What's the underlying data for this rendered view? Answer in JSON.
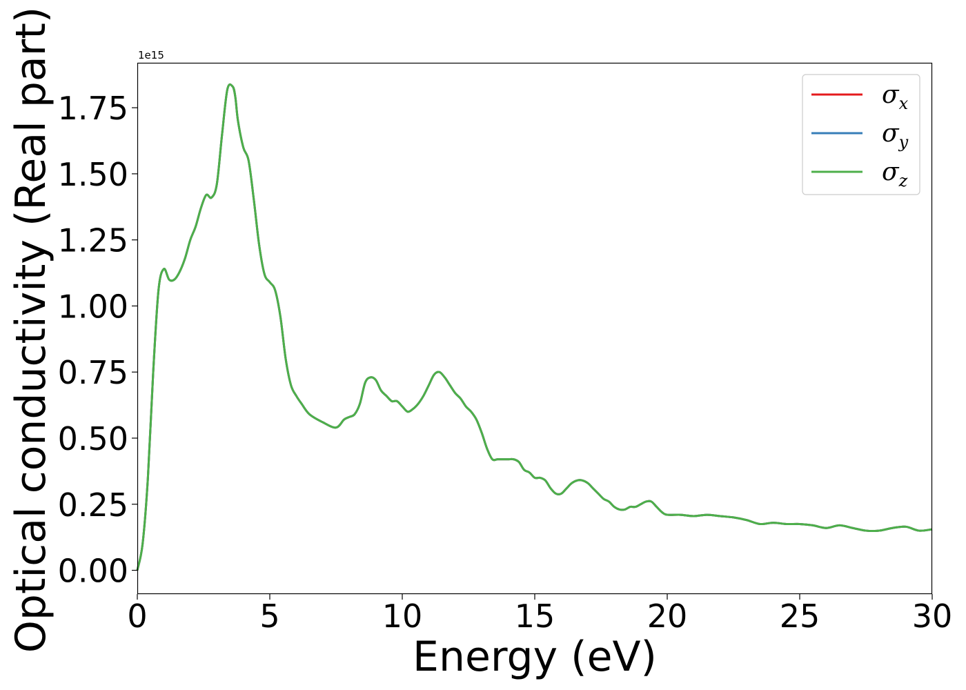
{
  "chart_data": {
    "type": "line",
    "xlabel": "Energy (eV)",
    "ylabel": "Optical conductivity (Real part)",
    "y_offset_label": "1e15",
    "y_scale": 1000000000000000.0,
    "xlim": [
      0,
      30
    ],
    "ylim": [
      -0.09,
      1.92
    ],
    "xticks": [
      0,
      5,
      10,
      15,
      20,
      25,
      30
    ],
    "xtick_labels": [
      "0",
      "5",
      "10",
      "15",
      "20",
      "25",
      "30"
    ],
    "yticks": [
      0,
      0.25,
      0.5,
      0.75,
      1.0,
      1.25,
      1.5,
      1.75
    ],
    "ytick_labels": [
      "0.00",
      "0.25",
      "0.50",
      "0.75",
      "1.00",
      "1.25",
      "1.50",
      "1.75"
    ],
    "grid": false,
    "legend_position": "top-right",
    "x": [
      0,
      0.2,
      0.4,
      0.6,
      0.8,
      1.0,
      1.2,
      1.4,
      1.6,
      1.8,
      2.0,
      2.2,
      2.4,
      2.6,
      2.8,
      3.0,
      3.2,
      3.4,
      3.6,
      3.7,
      3.8,
      4.0,
      4.2,
      4.4,
      4.6,
      4.8,
      5.0,
      5.2,
      5.4,
      5.6,
      5.8,
      6.0,
      6.2,
      6.5,
      7.0,
      7.5,
      7.8,
      8.0,
      8.2,
      8.4,
      8.6,
      8.8,
      9.0,
      9.2,
      9.4,
      9.6,
      9.8,
      10.0,
      10.2,
      10.4,
      10.6,
      10.8,
      11.0,
      11.2,
      11.4,
      11.6,
      11.8,
      12.0,
      12.2,
      12.4,
      12.6,
      12.8,
      13.0,
      13.2,
      13.4,
      13.6,
      13.8,
      14.0,
      14.2,
      14.4,
      14.6,
      14.8,
      15.0,
      15.2,
      15.4,
      15.6,
      15.8,
      16.0,
      16.2,
      16.4,
      16.6,
      16.8,
      17.0,
      17.2,
      17.4,
      17.6,
      17.8,
      18.0,
      18.2,
      18.4,
      18.6,
      18.8,
      19.0,
      19.2,
      19.4,
      19.6,
      19.8,
      20.0,
      20.5,
      21.0,
      21.5,
      22.0,
      22.5,
      23.0,
      23.5,
      24.0,
      24.5,
      25.0,
      25.5,
      26.0,
      26.5,
      27.0,
      27.5,
      28.0,
      28.5,
      29.0,
      29.5,
      30.0
    ],
    "series": [
      {
        "name": "σ_x",
        "color": "#e41a1c",
        "values": [
          0.0,
          0.1,
          0.35,
          0.75,
          1.06,
          1.14,
          1.1,
          1.1,
          1.13,
          1.18,
          1.25,
          1.3,
          1.37,
          1.42,
          1.41,
          1.46,
          1.65,
          1.82,
          1.83,
          1.79,
          1.7,
          1.6,
          1.55,
          1.4,
          1.23,
          1.12,
          1.09,
          1.06,
          0.96,
          0.8,
          0.7,
          0.66,
          0.63,
          0.59,
          0.56,
          0.54,
          0.57,
          0.58,
          0.59,
          0.63,
          0.71,
          0.73,
          0.72,
          0.68,
          0.66,
          0.64,
          0.64,
          0.62,
          0.6,
          0.61,
          0.63,
          0.66,
          0.7,
          0.74,
          0.75,
          0.73,
          0.7,
          0.67,
          0.65,
          0.62,
          0.6,
          0.57,
          0.52,
          0.46,
          0.42,
          0.42,
          0.42,
          0.42,
          0.42,
          0.41,
          0.38,
          0.37,
          0.35,
          0.35,
          0.34,
          0.31,
          0.29,
          0.29,
          0.31,
          0.33,
          0.34,
          0.34,
          0.33,
          0.31,
          0.29,
          0.27,
          0.26,
          0.24,
          0.23,
          0.23,
          0.24,
          0.24,
          0.25,
          0.26,
          0.26,
          0.24,
          0.22,
          0.21,
          0.21,
          0.205,
          0.21,
          0.205,
          0.2,
          0.19,
          0.175,
          0.18,
          0.175,
          0.175,
          0.17,
          0.16,
          0.17,
          0.16,
          0.15,
          0.15,
          0.16,
          0.165,
          0.15,
          0.155
        ]
      },
      {
        "name": "σ_y",
        "color": "#377eb8",
        "values": [
          0.0,
          0.1,
          0.35,
          0.75,
          1.06,
          1.14,
          1.1,
          1.1,
          1.13,
          1.18,
          1.25,
          1.3,
          1.37,
          1.42,
          1.41,
          1.46,
          1.65,
          1.82,
          1.83,
          1.79,
          1.7,
          1.6,
          1.55,
          1.4,
          1.23,
          1.12,
          1.09,
          1.06,
          0.96,
          0.8,
          0.7,
          0.66,
          0.63,
          0.59,
          0.56,
          0.54,
          0.57,
          0.58,
          0.59,
          0.63,
          0.71,
          0.73,
          0.72,
          0.68,
          0.66,
          0.64,
          0.64,
          0.62,
          0.6,
          0.61,
          0.63,
          0.66,
          0.7,
          0.74,
          0.75,
          0.73,
          0.7,
          0.67,
          0.65,
          0.62,
          0.6,
          0.57,
          0.52,
          0.46,
          0.42,
          0.42,
          0.42,
          0.42,
          0.42,
          0.41,
          0.38,
          0.37,
          0.35,
          0.35,
          0.34,
          0.31,
          0.29,
          0.29,
          0.31,
          0.33,
          0.34,
          0.34,
          0.33,
          0.31,
          0.29,
          0.27,
          0.26,
          0.24,
          0.23,
          0.23,
          0.24,
          0.24,
          0.25,
          0.26,
          0.26,
          0.24,
          0.22,
          0.21,
          0.21,
          0.205,
          0.21,
          0.205,
          0.2,
          0.19,
          0.175,
          0.18,
          0.175,
          0.175,
          0.17,
          0.16,
          0.17,
          0.16,
          0.15,
          0.15,
          0.16,
          0.165,
          0.15,
          0.155
        ]
      },
      {
        "name": "σ_z",
        "color": "#4daf4a",
        "values": [
          0.0,
          0.1,
          0.35,
          0.75,
          1.06,
          1.14,
          1.1,
          1.1,
          1.13,
          1.18,
          1.25,
          1.3,
          1.37,
          1.42,
          1.41,
          1.46,
          1.65,
          1.82,
          1.83,
          1.79,
          1.7,
          1.6,
          1.55,
          1.4,
          1.23,
          1.12,
          1.09,
          1.06,
          0.96,
          0.8,
          0.7,
          0.66,
          0.63,
          0.59,
          0.56,
          0.54,
          0.57,
          0.58,
          0.59,
          0.63,
          0.71,
          0.73,
          0.72,
          0.68,
          0.66,
          0.64,
          0.64,
          0.62,
          0.6,
          0.61,
          0.63,
          0.66,
          0.7,
          0.74,
          0.75,
          0.73,
          0.7,
          0.67,
          0.65,
          0.62,
          0.6,
          0.57,
          0.52,
          0.46,
          0.42,
          0.42,
          0.42,
          0.42,
          0.42,
          0.41,
          0.38,
          0.37,
          0.35,
          0.35,
          0.34,
          0.31,
          0.29,
          0.29,
          0.31,
          0.33,
          0.34,
          0.34,
          0.33,
          0.31,
          0.29,
          0.27,
          0.26,
          0.24,
          0.23,
          0.23,
          0.24,
          0.24,
          0.25,
          0.26,
          0.26,
          0.24,
          0.22,
          0.21,
          0.21,
          0.205,
          0.21,
          0.205,
          0.2,
          0.19,
          0.175,
          0.18,
          0.175,
          0.175,
          0.17,
          0.16,
          0.17,
          0.16,
          0.15,
          0.15,
          0.16,
          0.165,
          0.15,
          0.155
        ]
      }
    ]
  }
}
